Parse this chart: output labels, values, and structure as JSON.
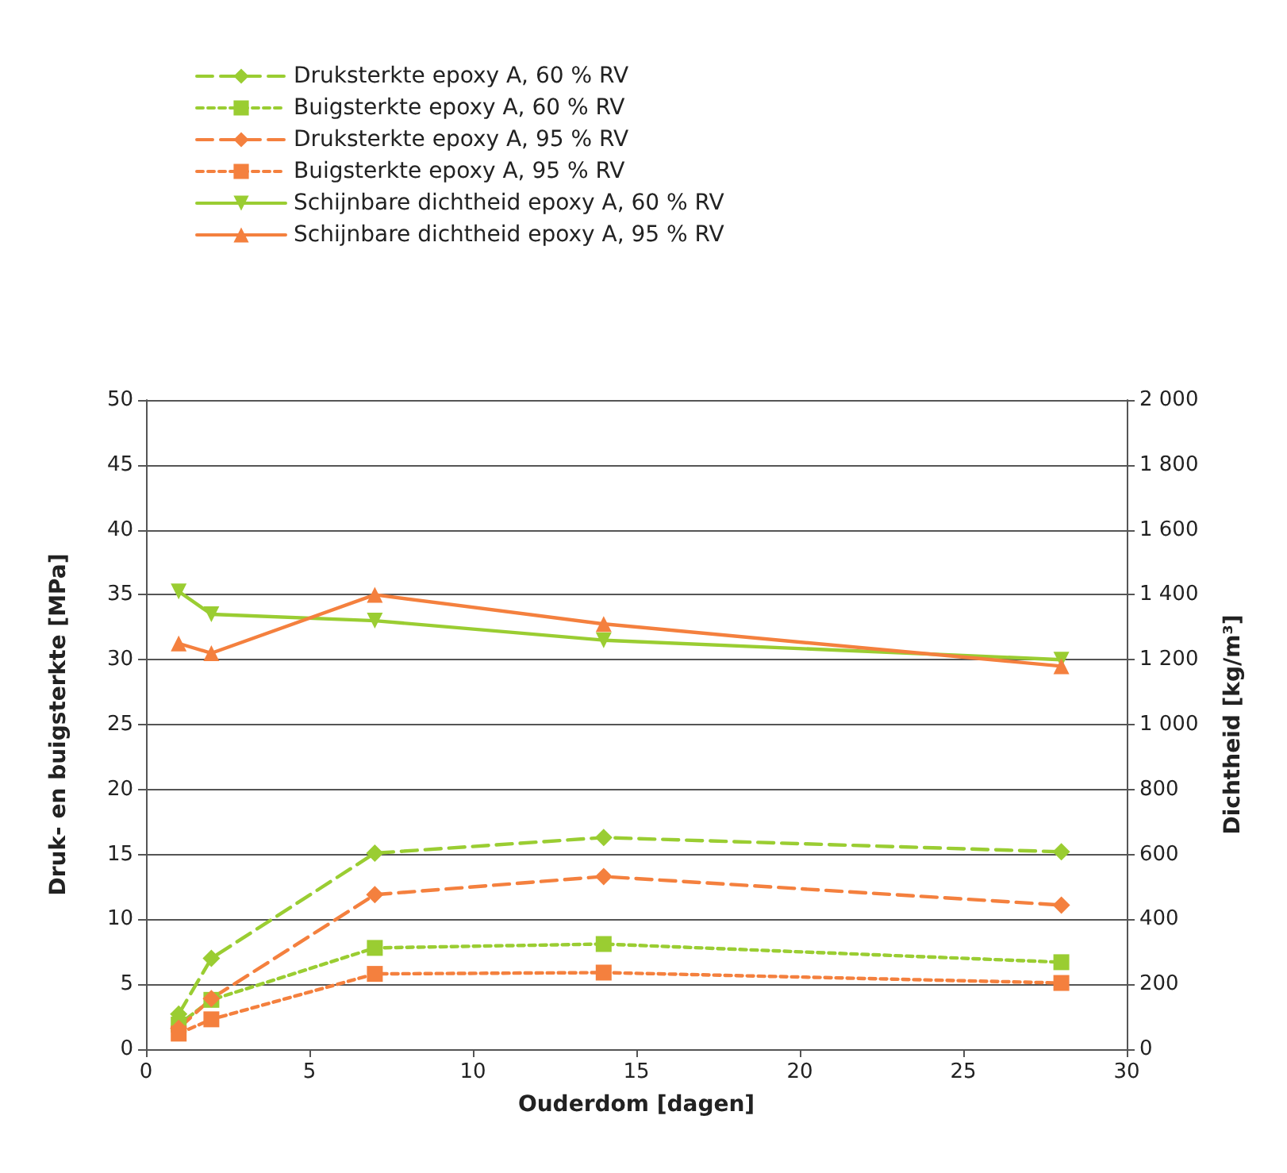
{
  "chart_data": {
    "type": "line",
    "xlabel": "Ouderdom [dagen]",
    "ylabel": "Druk- en buigsterkte [MPa]",
    "y2label": "Dichtheid [kg/m³]",
    "x": [
      1,
      2,
      7,
      14,
      28
    ],
    "xlim": [
      0,
      30
    ],
    "xticks": [
      0,
      5,
      10,
      15,
      20,
      25,
      30
    ],
    "ylim": [
      0,
      50
    ],
    "yticks": [
      0,
      5,
      10,
      15,
      20,
      25,
      30,
      35,
      40,
      45,
      50
    ],
    "y2lim": [
      0,
      2000
    ],
    "y2ticks": [
      0,
      200,
      400,
      600,
      800,
      {
        "value": 1000,
        "label": "1 000"
      },
      {
        "value": 1200,
        "label": "1 200"
      },
      {
        "value": 1400,
        "label": "1 400"
      },
      {
        "value": 1600,
        "label": "1 600"
      },
      {
        "value": 1800,
        "label": "1 800"
      },
      {
        "value": 2000,
        "label": "2 000"
      }
    ],
    "grid": "y",
    "legend": "top left",
    "series": [
      {
        "name": "Druksterkte epoxy A, 60 % RV",
        "color": "#9acd32",
        "marker": "diamond",
        "line_style": "dashed",
        "values": [
          2.7,
          7.0,
          15.1,
          16.3,
          15.2
        ]
      },
      {
        "name": "Buigsterkte epoxy A, 60 % RV",
        "color": "#9acd32",
        "marker": "square",
        "line_style": "dotted",
        "values": [
          1.9,
          3.8,
          7.8,
          8.1,
          6.7
        ]
      },
      {
        "name": "Druksterkte epoxy A, 95 % RV",
        "color": "#f4803e",
        "marker": "diamond",
        "line_style": "dashed",
        "values": [
          1.6,
          3.9,
          11.9,
          13.3,
          11.1
        ]
      },
      {
        "name": "Buigsterkte epoxy A, 95 % RV",
        "color": "#f4803e",
        "marker": "square",
        "line_style": "dotted",
        "values": [
          1.2,
          2.3,
          5.8,
          5.9,
          5.1
        ]
      },
      {
        "name": "Schijnbare dichtheid epoxy A, 60 % RV",
        "color": "#9acd32",
        "marker": "triangle-down",
        "line_style": "solid",
        "axis": "y2",
        "values": [
          1410,
          1340,
          1320,
          1260,
          1200
        ]
      },
      {
        "name": "Schijnbare dichtheid epoxy A, 95 % RV",
        "color": "#f4803e",
        "marker": "triangle",
        "line_style": "solid",
        "axis": "y2",
        "values": [
          1250,
          1220,
          1400,
          1310,
          1180
        ]
      }
    ]
  }
}
